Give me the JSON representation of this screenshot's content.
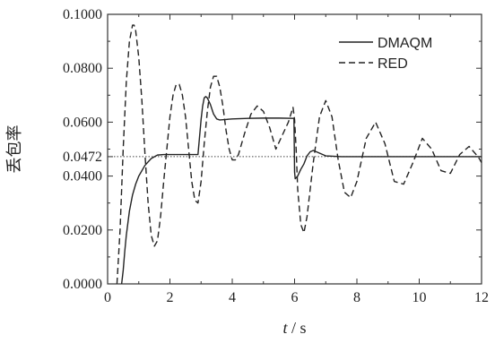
{
  "chart_data": {
    "type": "line",
    "xlabel": "t / s",
    "ylabel": "丢包率",
    "xlim": [
      0,
      12
    ],
    "ylim": [
      0,
      0.1
    ],
    "x_ticks": [
      {
        "v": 0,
        "label": "0"
      },
      {
        "v": 2,
        "label": "2"
      },
      {
        "v": 4,
        "label": "4"
      },
      {
        "v": 6,
        "label": "6"
      },
      {
        "v": 8,
        "label": "8"
      },
      {
        "v": 10,
        "label": "10"
      },
      {
        "v": 12,
        "label": "12"
      }
    ],
    "y_ticks": [
      {
        "v": 0,
        "label": "0.0000"
      },
      {
        "v": 0.02,
        "label": "0.0200"
      },
      {
        "v": 0.04,
        "label": "0.0400"
      },
      {
        "v": 0.0472,
        "label": "0.0472"
      },
      {
        "v": 0.06,
        "label": "0.0600"
      },
      {
        "v": 0.08,
        "label": "0.0800"
      },
      {
        "v": 0.1,
        "label": "0.1000"
      }
    ],
    "reference_line": {
      "y": 0.0472,
      "style": "dotted"
    },
    "grid": false,
    "legend": "top-right",
    "series": [
      {
        "name": "DMAQM",
        "style": "solid",
        "x": [
          0.45,
          0.5,
          0.55,
          0.6,
          0.7,
          0.8,
          0.9,
          1.0,
          1.2,
          1.4,
          1.6,
          1.8,
          2.0,
          2.4,
          2.9,
          3.0,
          3.05,
          3.1,
          3.15,
          3.2,
          3.3,
          3.4,
          3.5,
          3.6,
          3.8,
          4.0,
          4.5,
          5.0,
          5.5,
          5.98,
          6.0,
          6.02,
          6.1,
          6.2,
          6.3,
          6.4,
          6.5,
          6.6,
          6.8,
          7.0,
          7.5,
          8.0,
          9.0,
          10.0,
          11.0,
          12.0
        ],
        "y": [
          0.0,
          0.005,
          0.012,
          0.018,
          0.027,
          0.033,
          0.037,
          0.04,
          0.044,
          0.0465,
          0.0478,
          0.048,
          0.048,
          0.048,
          0.048,
          0.061,
          0.066,
          0.069,
          0.0695,
          0.069,
          0.0665,
          0.063,
          0.0612,
          0.0608,
          0.061,
          0.0612,
          0.0614,
          0.0615,
          0.0615,
          0.0614,
          0.0415,
          0.039,
          0.04,
          0.0425,
          0.0445,
          0.0475,
          0.049,
          0.0495,
          0.0485,
          0.0475,
          0.0472,
          0.0472,
          0.0472,
          0.0472,
          0.0472,
          0.0472
        ]
      },
      {
        "name": "RED",
        "style": "dashed",
        "x": [
          0.3,
          0.4,
          0.5,
          0.6,
          0.7,
          0.8,
          0.85,
          0.9,
          1.0,
          1.1,
          1.2,
          1.3,
          1.4,
          1.5,
          1.6,
          1.7,
          1.8,
          2.0,
          2.1,
          2.2,
          2.3,
          2.4,
          2.5,
          2.6,
          2.7,
          2.8,
          2.9,
          3.0,
          3.1,
          3.2,
          3.3,
          3.4,
          3.5,
          3.6,
          3.7,
          3.8,
          3.9,
          4.0,
          4.1,
          4.2,
          4.4,
          4.6,
          4.8,
          5.0,
          5.2,
          5.4,
          5.6,
          5.8,
          5.95,
          6.0,
          6.05,
          6.1,
          6.2,
          6.3,
          6.4,
          6.6,
          6.8,
          7.0,
          7.2,
          7.4,
          7.6,
          7.8,
          8.0,
          8.3,
          8.6,
          8.9,
          9.2,
          9.5,
          9.8,
          10.1,
          10.4,
          10.7,
          11.0,
          11.3,
          11.6,
          11.9,
          12.0
        ],
        "y": [
          0.0,
          0.02,
          0.05,
          0.075,
          0.09,
          0.096,
          0.096,
          0.094,
          0.084,
          0.068,
          0.048,
          0.03,
          0.018,
          0.014,
          0.016,
          0.025,
          0.038,
          0.062,
          0.07,
          0.074,
          0.074,
          0.07,
          0.062,
          0.05,
          0.038,
          0.031,
          0.03,
          0.038,
          0.052,
          0.064,
          0.073,
          0.077,
          0.077,
          0.073,
          0.066,
          0.057,
          0.05,
          0.046,
          0.046,
          0.048,
          0.056,
          0.063,
          0.066,
          0.064,
          0.058,
          0.05,
          0.055,
          0.06,
          0.0655,
          0.061,
          0.05,
          0.035,
          0.022,
          0.019,
          0.025,
          0.045,
          0.062,
          0.068,
          0.062,
          0.046,
          0.034,
          0.032,
          0.038,
          0.054,
          0.06,
          0.052,
          0.038,
          0.037,
          0.045,
          0.054,
          0.05,
          0.042,
          0.041,
          0.048,
          0.051,
          0.047,
          0.045
        ]
      }
    ]
  }
}
